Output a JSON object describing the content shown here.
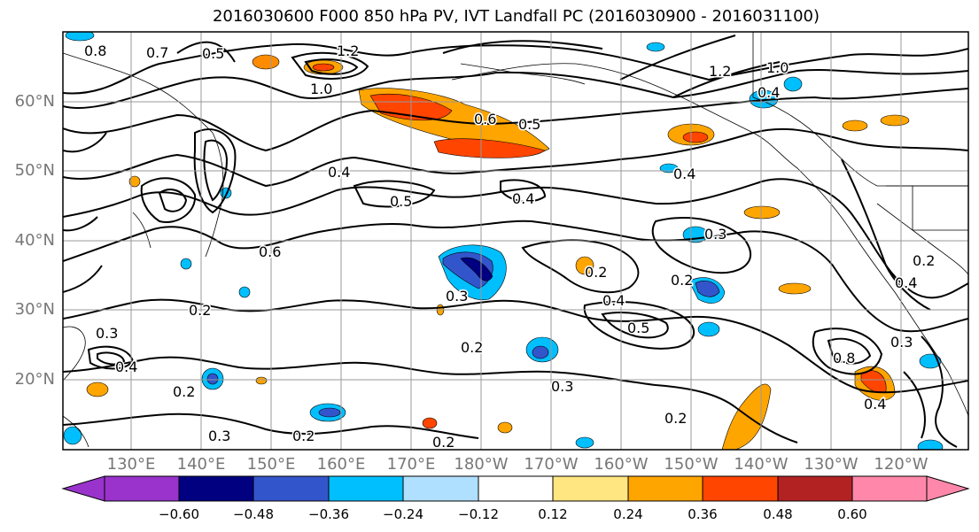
{
  "title": "2016030600 F000 850 hPa PV, IVT Landfall PC (2016030900 - 2016031100)",
  "lat_labels": [
    "60°N",
    "50°N",
    "40°N",
    "30°N",
    "20°N"
  ],
  "lon_labels": [
    "130°E",
    "140°E",
    "150°E",
    "160°E",
    "170°E",
    "180°W",
    "170°W",
    "160°W",
    "150°W",
    "140°W",
    "130°W",
    "120°W"
  ],
  "colorbar": {
    "ticks": [
      "−0.60",
      "−0.48",
      "−0.36",
      "−0.24",
      "−0.12",
      "0.12",
      "0.24",
      "0.36",
      "0.48",
      "0.60"
    ],
    "colors": [
      "#9933cc",
      "#000080",
      "#3355cc",
      "#00bfff",
      "#b0e0ff",
      "#ffffff",
      "#ffe680",
      "#ffa500",
      "#ff4500",
      "#b22222",
      "#ff88aa"
    ]
  },
  "contour_labels": [
    "0.8",
    "0.7",
    "0.5",
    "1.2",
    "1.0",
    "0.6",
    "0.5",
    "0.4",
    "0.5",
    "0.4",
    "0.6",
    "0.3",
    "0.2",
    "0.3",
    "0.2",
    "0.4",
    "0.5",
    "0.2",
    "0.3",
    "0.2",
    "0.3",
    "0.4",
    "0.2",
    "0.4",
    "0.2",
    "0.3",
    "0.2",
    "0.2",
    "1.0",
    "0.4",
    "1.2",
    "0.8",
    "0.4",
    "0.3",
    "0.2",
    "0.4"
  ]
}
